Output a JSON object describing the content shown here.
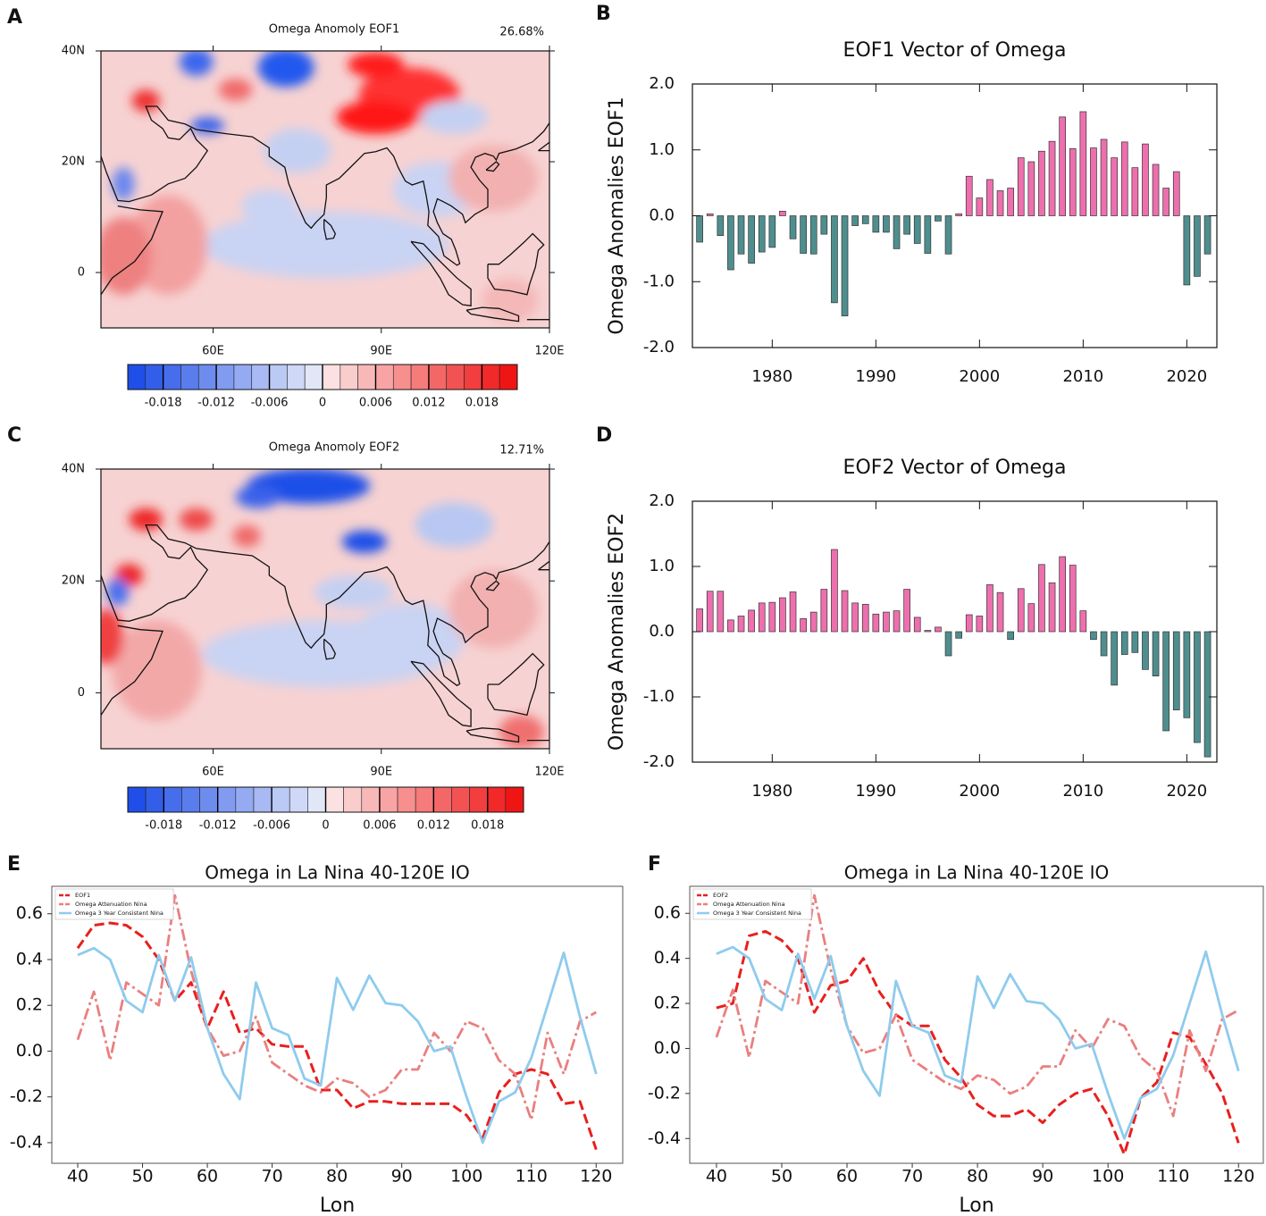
{
  "chart_data": [
    {
      "type": "map",
      "panel": "A",
      "title": "Omega Anomoly EOF1",
      "annotation": "26.68%",
      "xlim": [
        40,
        120
      ],
      "ylim": [
        -10,
        40
      ],
      "xticks": [
        {
          "value": 60,
          "label": "60E"
        },
        {
          "value": 90,
          "label": "90E"
        },
        {
          "value": 120,
          "label": "120E"
        }
      ],
      "yticks": [
        {
          "value": 40,
          "label": "40N"
        },
        {
          "value": 20,
          "label": "20N"
        },
        0
      ],
      "colorbar": {
        "lim": [
          -0.022,
          0.022
        ],
        "ticks": [
          -0.018,
          -0.012,
          -0.006,
          0,
          0.006,
          0.012,
          0.018
        ]
      }
    },
    {
      "type": "bar",
      "panel": "B",
      "title": "EOF1 Vector of Omega",
      "y_label": "Omega Anomalies EOF1",
      "x": [
        1973,
        1974,
        1975,
        1976,
        1977,
        1978,
        1979,
        1980,
        1981,
        1982,
        1983,
        1984,
        1985,
        1986,
        1987,
        1988,
        1989,
        1990,
        1991,
        1992,
        1993,
        1994,
        1995,
        1996,
        1997,
        1998,
        1999,
        2000,
        2001,
        2002,
        2003,
        2004,
        2005,
        2006,
        2007,
        2008,
        2009,
        2010,
        2011,
        2012,
        2013,
        2014,
        2015,
        2016,
        2017,
        2018,
        2019,
        2020,
        2021,
        2022
      ],
      "values": [
        -0.4,
        0.03,
        -0.3,
        -0.82,
        -0.58,
        -0.72,
        -0.55,
        -0.48,
        0.07,
        -0.35,
        -0.57,
        -0.58,
        -0.28,
        -1.32,
        -1.52,
        -0.15,
        -0.12,
        -0.25,
        -0.25,
        -0.5,
        -0.28,
        -0.42,
        -0.57,
        -0.08,
        -0.58,
        0.03,
        0.6,
        0.27,
        0.55,
        0.38,
        0.42,
        0.88,
        0.82,
        0.98,
        1.13,
        1.5,
        1.02,
        1.58,
        1.03,
        1.16,
        0.88,
        1.12,
        0.73,
        1.09,
        0.78,
        0.42,
        0.67,
        -1.05,
        -0.92,
        -0.58
      ],
      "positive_color": "#ee6fae",
      "negative_color": "#4f8e8e",
      "xlim": [
        1972.3,
        2022.9
      ],
      "ylim": [
        -2,
        2
      ],
      "xticks": [
        1980,
        1990,
        2000,
        2010,
        2020
      ],
      "yticks": [
        {
          "value": 2,
          "label": "2.0"
        },
        {
          "value": 1,
          "label": "1.0"
        },
        {
          "value": 0,
          "label": "0.0"
        },
        {
          "value": -1,
          "label": "-1.0"
        },
        {
          "value": -2,
          "label": "-2.0"
        }
      ]
    },
    {
      "type": "map",
      "panel": "C",
      "title": "Omega Anomoly EOF2",
      "annotation": "12.71%",
      "xlim": [
        40,
        120
      ],
      "ylim": [
        -10,
        40
      ],
      "xticks": [
        {
          "value": 60,
          "label": "60E"
        },
        {
          "value": 90,
          "label": "90E"
        },
        {
          "value": 120,
          "label": "120E"
        }
      ],
      "yticks": [
        {
          "value": 40,
          "label": "40N"
        },
        {
          "value": 20,
          "label": "20N"
        },
        0
      ],
      "colorbar": {
        "lim": [
          -0.022,
          0.022
        ],
        "ticks": [
          -0.018,
          -0.012,
          -0.006,
          0,
          0.006,
          0.012,
          0.018
        ]
      }
    },
    {
      "type": "bar",
      "panel": "D",
      "title": "EOF2 Vector of Omega",
      "y_label": "Omega Anomalies EOF2",
      "x": [
        1973,
        1974,
        1975,
        1976,
        1977,
        1978,
        1979,
        1980,
        1981,
        1982,
        1983,
        1984,
        1985,
        1986,
        1987,
        1988,
        1989,
        1990,
        1991,
        1992,
        1993,
        1994,
        1995,
        1996,
        1997,
        1998,
        1999,
        2000,
        2001,
        2002,
        2003,
        2004,
        2005,
        2006,
        2007,
        2008,
        2009,
        2010,
        2011,
        2012,
        2013,
        2014,
        2015,
        2016,
        2017,
        2018,
        2019,
        2020,
        2021,
        2022
      ],
      "values": [
        0.35,
        0.62,
        0.62,
        0.18,
        0.24,
        0.33,
        0.44,
        0.45,
        0.52,
        0.61,
        0.2,
        0.3,
        0.65,
        1.26,
        0.63,
        0.44,
        0.42,
        0.27,
        0.3,
        0.32,
        0.65,
        0.22,
        0.02,
        0.07,
        -0.37,
        -0.1,
        0.26,
        0.24,
        0.72,
        0.6,
        -0.12,
        0.66,
        0.43,
        1.03,
        0.75,
        1.15,
        1.02,
        0.32,
        -0.12,
        -0.37,
        -0.82,
        -0.35,
        -0.32,
        -0.58,
        -0.68,
        -1.52,
        -1.2,
        -1.32,
        -1.7,
        -1.92
      ],
      "positive_color": "#ee6fae",
      "negative_color": "#4f8e8e",
      "xlim": [
        1972.3,
        2022.9
      ],
      "ylim": [
        -2,
        2
      ],
      "xticks": [
        1980,
        1990,
        2000,
        2010,
        2020
      ],
      "yticks": [
        {
          "value": 2,
          "label": "2.0"
        },
        {
          "value": 1,
          "label": "1.0"
        },
        {
          "value": 0,
          "label": "0.0"
        },
        {
          "value": -1,
          "label": "-1.0"
        },
        {
          "value": -2,
          "label": "-2.0"
        }
      ]
    },
    {
      "type": "line",
      "panel": "E",
      "title": "Omega in La Nina 40-120E IO",
      "x_label": "Lon",
      "x": [
        40,
        42.5,
        45,
        47.5,
        50,
        52.5,
        55,
        57.5,
        60,
        62.5,
        65,
        67.5,
        70,
        72.5,
        75,
        77.5,
        80,
        82.5,
        85,
        87.5,
        90,
        92.5,
        95,
        97.5,
        100,
        102.5,
        105,
        107.5,
        110,
        112.5,
        115,
        117.5,
        120
      ],
      "series": [
        {
          "name": "EOF1",
          "color": "#e8201e",
          "style": "dashed",
          "values": [
            0.45,
            0.55,
            0.56,
            0.55,
            0.5,
            0.4,
            0.22,
            0.3,
            0.1,
            0.26,
            0.08,
            0.1,
            0.03,
            0.02,
            0.02,
            -0.17,
            -0.17,
            -0.25,
            -0.22,
            -0.22,
            -0.23,
            -0.23,
            -0.23,
            -0.23,
            -0.28,
            -0.38,
            -0.18,
            -0.1,
            -0.08,
            -0.1,
            -0.23,
            -0.22,
            -0.43
          ]
        },
        {
          "name": "Omega Attenuation Nina",
          "color": "#ea7f7f",
          "style": "dashdot",
          "values": [
            0.05,
            0.26,
            -0.04,
            0.3,
            0.25,
            0.2,
            0.68,
            0.35,
            0.1,
            -0.02,
            0.0,
            0.15,
            -0.05,
            -0.1,
            -0.15,
            -0.18,
            -0.12,
            -0.14,
            -0.2,
            -0.17,
            -0.08,
            -0.08,
            0.08,
            0.0,
            0.13,
            0.1,
            -0.04,
            -0.1,
            -0.3,
            0.08,
            -0.1,
            0.13,
            0.17
          ]
        },
        {
          "name": "Omega 3 Year Consistent Nina",
          "color": "#8ecbee",
          "style": "solid",
          "values": [
            0.42,
            0.45,
            0.4,
            0.22,
            0.17,
            0.42,
            0.22,
            0.41,
            0.1,
            -0.1,
            -0.21,
            0.3,
            0.1,
            0.07,
            -0.12,
            -0.15,
            0.32,
            0.18,
            0.33,
            0.21,
            0.2,
            0.13,
            0.0,
            0.02,
            -0.2,
            -0.4,
            -0.22,
            -0.18,
            -0.03,
            0.2,
            0.43,
            0.15,
            -0.1
          ]
        }
      ],
      "xlim": [
        36,
        124.1
      ],
      "ylim": [
        -0.49,
        0.72
      ],
      "xticks": [
        40,
        50,
        60,
        70,
        80,
        90,
        100,
        110,
        120
      ],
      "yticks": [
        0.6,
        0.4,
        0.2,
        {
          "value": 0,
          "label": "0.0"
        },
        -0.2,
        -0.4
      ]
    },
    {
      "type": "line",
      "panel": "F",
      "title": "Omega in La Nina 40-120E IO",
      "x_label": "Lon",
      "x": [
        40,
        42.5,
        45,
        47.5,
        50,
        52.5,
        55,
        57.5,
        60,
        62.5,
        65,
        67.5,
        70,
        72.5,
        75,
        77.5,
        80,
        82.5,
        85,
        87.5,
        90,
        92.5,
        95,
        97.5,
        100,
        102.5,
        105,
        107.5,
        110,
        112.5,
        115,
        117.5,
        120
      ],
      "series": [
        {
          "name": "EOF2",
          "color": "#e8201e",
          "style": "dashed",
          "values": [
            0.18,
            0.2,
            0.5,
            0.52,
            0.48,
            0.4,
            0.16,
            0.28,
            0.3,
            0.4,
            0.25,
            0.15,
            0.1,
            0.1,
            -0.05,
            -0.13,
            -0.25,
            -0.3,
            -0.3,
            -0.27,
            -0.33,
            -0.25,
            -0.2,
            -0.18,
            -0.3,
            -0.47,
            -0.22,
            -0.15,
            0.07,
            0.05,
            -0.07,
            -0.2,
            -0.42
          ]
        },
        {
          "name": "Omega Attenuation Nina",
          "color": "#ea7f7f",
          "style": "dashdot",
          "values": [
            0.05,
            0.26,
            -0.04,
            0.3,
            0.25,
            0.2,
            0.68,
            0.35,
            0.1,
            -0.02,
            0.0,
            0.15,
            -0.05,
            -0.1,
            -0.15,
            -0.18,
            -0.12,
            -0.14,
            -0.2,
            -0.17,
            -0.08,
            -0.08,
            0.08,
            0.0,
            0.13,
            0.1,
            -0.04,
            -0.1,
            -0.3,
            0.08,
            -0.1,
            0.13,
            0.17
          ]
        },
        {
          "name": "Omega 3 Year Consistent Nina",
          "color": "#8ecbee",
          "style": "solid",
          "values": [
            0.42,
            0.45,
            0.4,
            0.22,
            0.17,
            0.42,
            0.22,
            0.41,
            0.1,
            -0.1,
            -0.21,
            0.3,
            0.1,
            0.07,
            -0.12,
            -0.15,
            0.32,
            0.18,
            0.33,
            0.21,
            0.2,
            0.13,
            0.0,
            0.02,
            -0.2,
            -0.4,
            -0.22,
            -0.18,
            -0.03,
            0.2,
            0.43,
            0.15,
            -0.1
          ]
        }
      ],
      "xlim": [
        35.9,
        123.8
      ],
      "ylim": [
        -0.51,
        0.72
      ],
      "xticks": [
        40,
        50,
        60,
        70,
        80,
        90,
        100,
        110,
        120
      ],
      "yticks": [
        0.6,
        0.4,
        0.2,
        {
          "value": 0,
          "label": "0.0"
        },
        -0.2,
        -0.4
      ]
    }
  ]
}
